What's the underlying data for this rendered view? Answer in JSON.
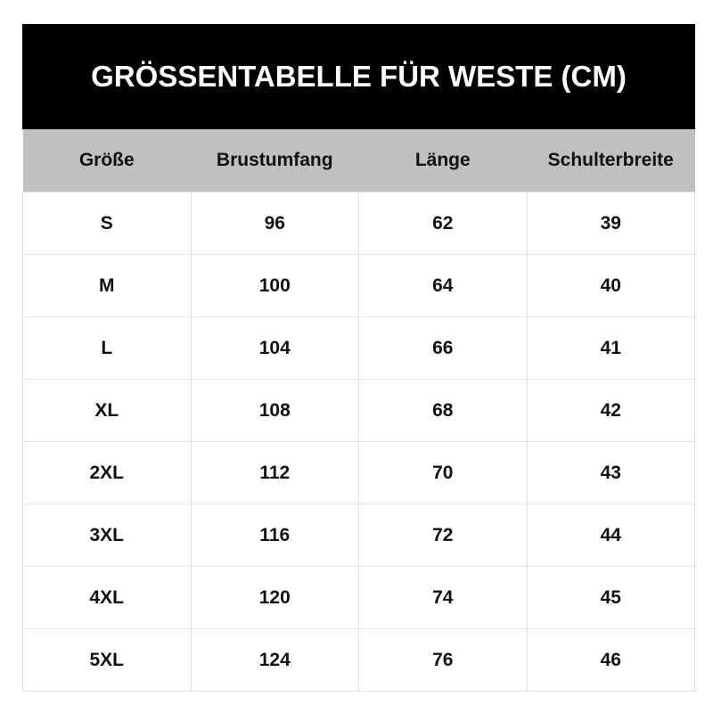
{
  "title": "GRÖSSENTABELLE FÜR WESTE (CM)",
  "columns": [
    "Größe",
    "Brustumfang",
    "Länge",
    "Schulterbreite"
  ],
  "rows": [
    [
      "S",
      "96",
      "62",
      "39"
    ],
    [
      "M",
      "100",
      "64",
      "40"
    ],
    [
      "L",
      "104",
      "66",
      "41"
    ],
    [
      "XL",
      "108",
      "68",
      "42"
    ],
    [
      "2XL",
      "112",
      "70",
      "43"
    ],
    [
      "3XL",
      "116",
      "72",
      "44"
    ],
    [
      "4XL",
      "120",
      "74",
      "45"
    ],
    [
      "5XL",
      "124",
      "76",
      "46"
    ]
  ],
  "colors": {
    "title_bg": "#000000",
    "header_bg": "#c0c0c0",
    "border": "#e2e2e2"
  }
}
